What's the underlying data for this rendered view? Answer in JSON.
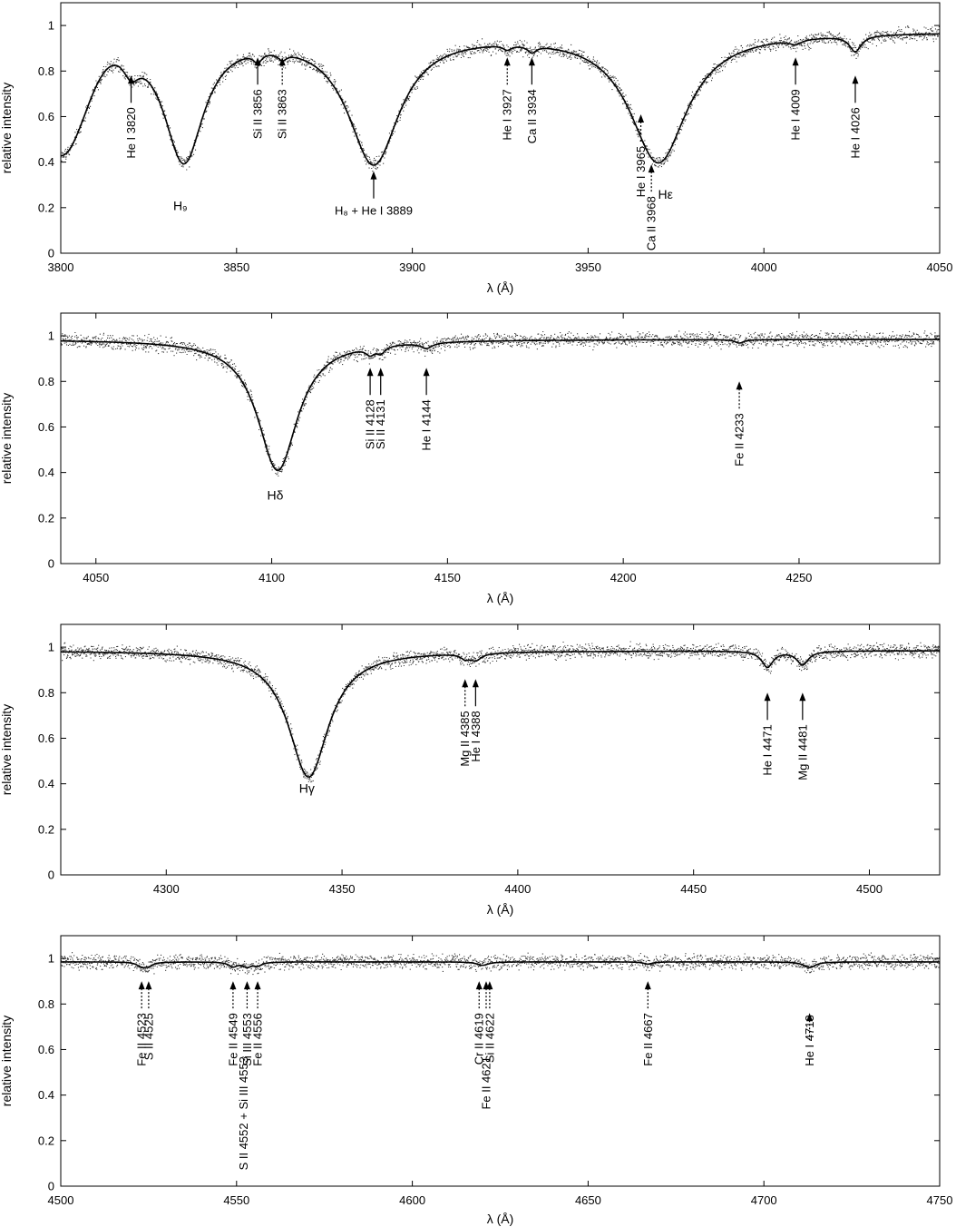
{
  "chart_data": [
    {
      "type": "line",
      "xlabel": "λ (Å)",
      "ylabel": "relative intensity",
      "xlim": [
        3800,
        4050
      ],
      "ylim": [
        0,
        1.1
      ],
      "xticks": [
        "3800",
        "3850",
        "3900",
        "3950",
        "4000",
        "4050"
      ],
      "yticks": [
        "0",
        "0.2",
        "0.4",
        "0.6",
        "0.8",
        "1"
      ],
      "continuum": 0.975,
      "edge_drop": {
        "x0": 3800,
        "y0": 0.46,
        "width": 7
      },
      "lines": [
        {
          "x": 3820,
          "depth": 0.1,
          "width": 3
        },
        {
          "x": 3835,
          "depth": 0.56,
          "width": 7
        },
        {
          "x": 3856,
          "depth": 0.04,
          "width": 1.5
        },
        {
          "x": 3863,
          "depth": 0.03,
          "width": 1.5
        },
        {
          "x": 3889,
          "depth": 0.57,
          "width": 9
        },
        {
          "x": 3927,
          "depth": 0.02,
          "width": 1.5
        },
        {
          "x": 3934,
          "depth": 0.03,
          "width": 1.5
        },
        {
          "x": 3970,
          "depth": 0.57,
          "width": 10
        },
        {
          "x": 4009,
          "depth": 0.02,
          "width": 2
        },
        {
          "x": 4026,
          "depth": 0.07,
          "width": 2
        }
      ],
      "annotations": [
        {
          "label": "He I 3820",
          "x": 3820,
          "style": "solid",
          "dir": "up",
          "arrow_y": 0.78,
          "text": "below"
        },
        {
          "label": "Si II 3856",
          "x": 3856,
          "style": "solid",
          "dir": "up",
          "arrow_y": 0.86,
          "text": "below"
        },
        {
          "label": "Si II 3863",
          "x": 3863,
          "style": "dotted",
          "dir": "up",
          "arrow_y": 0.86,
          "text": "below"
        },
        {
          "label": "He I 3927",
          "x": 3927,
          "style": "dotted",
          "dir": "up",
          "arrow_y": 0.86,
          "text": "below"
        },
        {
          "label": "Ca II 3934",
          "x": 3934,
          "style": "solid",
          "dir": "up",
          "arrow_y": 0.86,
          "text": "below"
        },
        {
          "label": "He I 3965",
          "x": 3965,
          "style": "dotted",
          "dir": "up",
          "arrow_y": 0.61,
          "text": "below"
        },
        {
          "label": "He I 4009",
          "x": 4009,
          "style": "solid",
          "dir": "up",
          "arrow_y": 0.86,
          "text": "below"
        },
        {
          "label": "He I 4026",
          "x": 4026,
          "style": "solid",
          "dir": "up",
          "arrow_y": 0.78,
          "text": "below"
        },
        {
          "label": "H₈ + He I 3889",
          "x": 3889,
          "style": "solid",
          "dir": "up",
          "arrow_y": 0.36,
          "text": "below-horizontal"
        },
        {
          "label": "Ca II 3968",
          "x": 3968,
          "style": "dotted",
          "dir": "up",
          "arrow_y": 0.39,
          "text": "below"
        }
      ],
      "labels": [
        {
          "text": "H₉",
          "x": 3834,
          "y": 0.19
        },
        {
          "text": "Hε",
          "x": 3972,
          "y": 0.24
        }
      ]
    },
    {
      "type": "line",
      "xlabel": "λ (Å)",
      "ylabel": "relative intensity",
      "xlim": [
        4040,
        4290
      ],
      "ylim": [
        0,
        1.1
      ],
      "xticks": [
        "4050",
        "4100",
        "4150",
        "4200",
        "4250"
      ],
      "yticks": [
        "0",
        "0.2",
        "0.4",
        "0.6",
        "0.8",
        "1"
      ],
      "continuum": 0.985,
      "lines": [
        {
          "x": 4101.7,
          "depth": 0.575,
          "width": 7
        },
        {
          "x": 4128,
          "depth": 0.03,
          "width": 1.5
        },
        {
          "x": 4131,
          "depth": 0.03,
          "width": 1.5
        },
        {
          "x": 4144,
          "depth": 0.025,
          "width": 2
        },
        {
          "x": 4233,
          "depth": 0.015,
          "width": 1.5
        }
      ],
      "annotations": [
        {
          "label": "Si II 4128",
          "x": 4128,
          "style": "solid",
          "dir": "up",
          "arrow_y": 0.86,
          "text": "below"
        },
        {
          "label": "Si II 4131",
          "x": 4131,
          "style": "solid",
          "dir": "up",
          "arrow_y": 0.86,
          "text": "below"
        },
        {
          "label": "He I 4144",
          "x": 4144,
          "style": "solid",
          "dir": "up",
          "arrow_y": 0.86,
          "text": "below"
        },
        {
          "label": "Fe II 4233",
          "x": 4233,
          "style": "dotted",
          "dir": "up",
          "arrow_y": 0.8,
          "text": "below"
        }
      ],
      "labels": [
        {
          "text": "Hδ",
          "x": 4101,
          "y": 0.28
        }
      ]
    },
    {
      "type": "line",
      "xlabel": "λ (Å)",
      "ylabel": "relative intensity",
      "xlim": [
        4270,
        4520
      ],
      "ylim": [
        0,
        1.1
      ],
      "xticks": [
        "4300",
        "4350",
        "4400",
        "4450",
        "4500"
      ],
      "yticks": [
        "0",
        "0.2",
        "0.4",
        "0.6",
        "0.8",
        "1"
      ],
      "continuum": 0.985,
      "lines": [
        {
          "x": 4340.5,
          "depth": 0.555,
          "width": 7
        },
        {
          "x": 4385,
          "depth": 0.02,
          "width": 1.5
        },
        {
          "x": 4388,
          "depth": 0.03,
          "width": 2
        },
        {
          "x": 4471,
          "depth": 0.07,
          "width": 2
        },
        {
          "x": 4481,
          "depth": 0.06,
          "width": 2
        }
      ],
      "annotations": [
        {
          "label": "Mg II 4385",
          "x": 4385,
          "style": "dotted",
          "dir": "up",
          "arrow_y": 0.86,
          "text": "below"
        },
        {
          "label": "He I 4388",
          "x": 4388,
          "style": "solid",
          "dir": "up",
          "arrow_y": 0.86,
          "text": "below"
        },
        {
          "label": "He I 4471",
          "x": 4471,
          "style": "solid",
          "dir": "up",
          "arrow_y": 0.8,
          "text": "below"
        },
        {
          "label": "Mg II 4481",
          "x": 4481,
          "style": "solid",
          "dir": "up",
          "arrow_y": 0.8,
          "text": "below"
        }
      ],
      "labels": [
        {
          "text": "Hγ",
          "x": 4340,
          "y": 0.36
        }
      ]
    },
    {
      "type": "line",
      "xlabel": "λ (Å)",
      "ylabel": "relative intensity",
      "xlim": [
        4500,
        4750
      ],
      "ylim": [
        0,
        1.1
      ],
      "xticks": [
        "4500",
        "4550",
        "4600",
        "4650",
        "4700",
        "4750"
      ],
      "yticks": [
        "0",
        "0.2",
        "0.4",
        "0.6",
        "0.8",
        "1"
      ],
      "continuum": 0.985,
      "lines": [
        {
          "x": 4523,
          "depth": 0.02,
          "width": 1.5
        },
        {
          "x": 4525,
          "depth": 0.015,
          "width": 1.5
        },
        {
          "x": 4549,
          "depth": 0.02,
          "width": 1.5
        },
        {
          "x": 4553,
          "depth": 0.02,
          "width": 1.5
        },
        {
          "x": 4556,
          "depth": 0.015,
          "width": 1.5
        },
        {
          "x": 4620,
          "depth": 0.015,
          "width": 2
        },
        {
          "x": 4667,
          "depth": 0.01,
          "width": 1.5
        },
        {
          "x": 4713,
          "depth": 0.025,
          "width": 2
        }
      ],
      "annotations": [
        {
          "label": "Fe II 4523",
          "x": 4523,
          "style": "dotted",
          "dir": "up",
          "arrow_y": 0.9,
          "text": "below"
        },
        {
          "label": "S II 4525",
          "x": 4525,
          "style": "dotted",
          "dir": "up",
          "arrow_y": 0.9,
          "text": "below"
        },
        {
          "label": "Fe II 4549",
          "x": 4549,
          "style": "dotted",
          "dir": "up",
          "arrow_y": 0.9,
          "text": "below"
        },
        {
          "label": "Si III 4553",
          "x": 4553,
          "style": "dotted",
          "dir": "up",
          "arrow_y": 0.9,
          "text": "below"
        },
        {
          "label": "Fe II 4556",
          "x": 4556,
          "style": "dotted",
          "dir": "up",
          "arrow_y": 0.9,
          "text": "below"
        },
        {
          "label": "Cr II 4619",
          "x": 4619,
          "style": "dotted",
          "dir": "up",
          "arrow_y": 0.9,
          "text": "below"
        },
        {
          "label": "Si II 4622",
          "x": 4622,
          "style": "dotted",
          "dir": "up",
          "arrow_y": 0.9,
          "text": "below"
        },
        {
          "label": "Fe II 4667",
          "x": 4667,
          "style": "dotted",
          "dir": "up",
          "arrow_y": 0.9,
          "text": "below"
        },
        {
          "label": "He I 4713",
          "x": 4713,
          "style": "dotted",
          "dir": "up",
          "arrow_y": 0.76,
          "text": "left"
        },
        {
          "label": "S II 4552 + Si III 4553",
          "x": 4552,
          "style": "none",
          "text": "low"
        },
        {
          "label": "Fe II 4621",
          "x": 4621,
          "style": "dotted",
          "dir": "up",
          "arrow_y": 0.9,
          "text": "low"
        }
      ],
      "labels": []
    }
  ]
}
